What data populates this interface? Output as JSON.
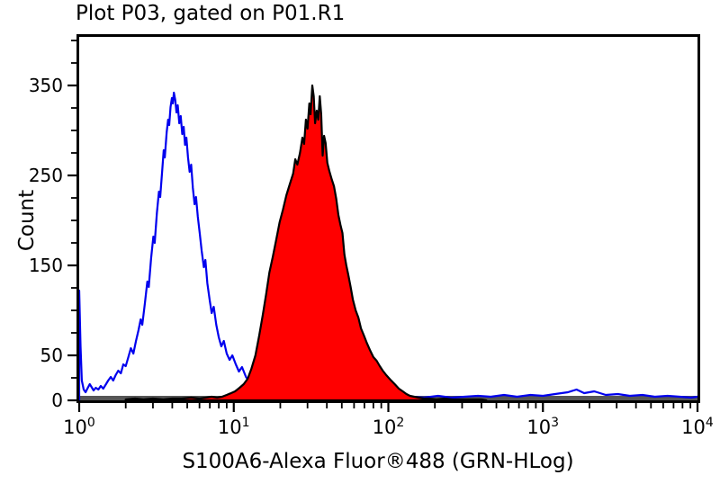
{
  "chart_data": {
    "type": "line",
    "title": "Plot P03, gated on P01.R1",
    "xlabel": "S100A6-Alexa Fluor®488 (GRN-HLog)",
    "ylabel": "Count",
    "x_scale": "log10",
    "xlim": [
      1,
      10000
    ],
    "ylim": [
      0,
      404
    ],
    "grid": false,
    "legend": false,
    "x_tick_base": "10",
    "x_tick_exponents": [
      0,
      1,
      2,
      3,
      4
    ],
    "y_ticks_labeled": [
      0,
      50,
      150,
      250,
      350
    ],
    "y_tick_minor_step": 25,
    "frame_color": "#000000",
    "baseline_band_color": "#565656",
    "series": [
      {
        "name": "blue-open-histogram",
        "stroke": "#0000ee",
        "fill": "none",
        "points": [
          [
            1.0,
            0
          ],
          [
            1.0,
            122
          ],
          [
            1.02,
            60
          ],
          [
            1.04,
            22
          ],
          [
            1.07,
            12
          ],
          [
            1.1,
            9
          ],
          [
            1.13,
            13
          ],
          [
            1.17,
            18
          ],
          [
            1.2,
            15
          ],
          [
            1.24,
            11
          ],
          [
            1.28,
            14
          ],
          [
            1.33,
            12
          ],
          [
            1.38,
            16
          ],
          [
            1.43,
            13
          ],
          [
            1.48,
            17
          ],
          [
            1.54,
            22
          ],
          [
            1.6,
            26
          ],
          [
            1.66,
            22
          ],
          [
            1.72,
            28
          ],
          [
            1.79,
            33
          ],
          [
            1.86,
            30
          ],
          [
            1.93,
            40
          ],
          [
            2.0,
            38
          ],
          [
            2.08,
            48
          ],
          [
            2.16,
            58
          ],
          [
            2.24,
            52
          ],
          [
            2.33,
            66
          ],
          [
            2.42,
            78
          ],
          [
            2.5,
            90
          ],
          [
            2.56,
            84
          ],
          [
            2.66,
            108
          ],
          [
            2.76,
            132
          ],
          [
            2.82,
            126
          ],
          [
            2.92,
            158
          ],
          [
            3.02,
            182
          ],
          [
            3.08,
            175
          ],
          [
            3.18,
            208
          ],
          [
            3.28,
            232
          ],
          [
            3.34,
            226
          ],
          [
            3.44,
            255
          ],
          [
            3.52,
            278
          ],
          [
            3.58,
            270
          ],
          [
            3.68,
            298
          ],
          [
            3.76,
            312
          ],
          [
            3.82,
            306
          ],
          [
            3.9,
            326
          ],
          [
            3.98,
            336
          ],
          [
            4.04,
            330
          ],
          [
            4.1,
            342
          ],
          [
            4.18,
            334
          ],
          [
            4.26,
            320
          ],
          [
            4.34,
            328
          ],
          [
            4.44,
            308
          ],
          [
            4.54,
            316
          ],
          [
            4.64,
            296
          ],
          [
            4.74,
            304
          ],
          [
            4.84,
            284
          ],
          [
            4.94,
            292
          ],
          [
            5.06,
            270
          ],
          [
            5.18,
            254
          ],
          [
            5.3,
            262
          ],
          [
            5.44,
            236
          ],
          [
            5.58,
            218
          ],
          [
            5.7,
            226
          ],
          [
            5.85,
            204
          ],
          [
            6.02,
            186
          ],
          [
            6.2,
            166
          ],
          [
            6.4,
            148
          ],
          [
            6.55,
            156
          ],
          [
            6.75,
            130
          ],
          [
            6.98,
            112
          ],
          [
            7.2,
            97
          ],
          [
            7.42,
            104
          ],
          [
            7.7,
            84
          ],
          [
            8.0,
            70
          ],
          [
            8.3,
            60
          ],
          [
            8.62,
            66
          ],
          [
            9.0,
            52
          ],
          [
            9.4,
            45
          ],
          [
            9.8,
            50
          ],
          [
            10.3,
            40
          ],
          [
            10.8,
            32
          ],
          [
            11.3,
            37
          ],
          [
            12.0,
            26
          ],
          [
            12.7,
            20
          ],
          [
            13.4,
            24
          ],
          [
            14.2,
            13
          ],
          [
            15.2,
            8
          ],
          [
            16.5,
            6
          ],
          [
            18.0,
            4
          ],
          [
            20,
            5
          ],
          [
            23,
            3
          ],
          [
            27,
            4
          ],
          [
            32,
            2
          ],
          [
            38,
            3
          ],
          [
            45,
            2
          ],
          [
            54,
            3
          ],
          [
            65,
            2
          ],
          [
            78,
            3
          ],
          [
            95,
            4
          ],
          [
            115,
            3
          ],
          [
            140,
            4
          ],
          [
            170,
            3
          ],
          [
            210,
            5
          ],
          [
            255,
            3
          ],
          [
            310,
            4
          ],
          [
            380,
            5
          ],
          [
            460,
            4
          ],
          [
            560,
            6
          ],
          [
            680,
            4
          ],
          [
            830,
            6
          ],
          [
            1000,
            5
          ],
          [
            1200,
            7
          ],
          [
            1450,
            9
          ],
          [
            1650,
            12
          ],
          [
            1850,
            8
          ],
          [
            2150,
            10
          ],
          [
            2550,
            6
          ],
          [
            3050,
            7
          ],
          [
            3650,
            5
          ],
          [
            4400,
            6
          ],
          [
            5300,
            4
          ],
          [
            6400,
            5
          ],
          [
            7700,
            4
          ],
          [
            9100,
            3
          ],
          [
            10000,
            4
          ]
        ]
      },
      {
        "name": "red-filled-histogram",
        "stroke": "#000000",
        "fill": "#ff0000",
        "points": [
          [
            2.0,
            1
          ],
          [
            2.3,
            2
          ],
          [
            2.6,
            1
          ],
          [
            3.0,
            2
          ],
          [
            3.5,
            1
          ],
          [
            4.0,
            2
          ],
          [
            4.6,
            2
          ],
          [
            5.3,
            3
          ],
          [
            6.0,
            2
          ],
          [
            6.6,
            3
          ],
          [
            7.2,
            4
          ],
          [
            7.8,
            3
          ],
          [
            8.4,
            4
          ],
          [
            9.0,
            6
          ],
          [
            9.6,
            8
          ],
          [
            10.2,
            10
          ],
          [
            10.9,
            14
          ],
          [
            11.6,
            18
          ],
          [
            12.3,
            24
          ],
          [
            13.0,
            35
          ],
          [
            13.8,
            50
          ],
          [
            14.6,
            72
          ],
          [
            15.4,
            95
          ],
          [
            16.2,
            118
          ],
          [
            17.0,
            142
          ],
          [
            17.9,
            160
          ],
          [
            18.8,
            178
          ],
          [
            19.8,
            198
          ],
          [
            20.8,
            212
          ],
          [
            21.9,
            228
          ],
          [
            23.0,
            240
          ],
          [
            24.2,
            252
          ],
          [
            25.0,
            268
          ],
          [
            25.8,
            262
          ],
          [
            26.8,
            275
          ],
          [
            27.8,
            292
          ],
          [
            28.5,
            285
          ],
          [
            29.3,
            312
          ],
          [
            30.0,
            302
          ],
          [
            30.8,
            330
          ],
          [
            31.4,
            318
          ],
          [
            32.2,
            350
          ],
          [
            32.9,
            338
          ],
          [
            33.6,
            308
          ],
          [
            34.4,
            322
          ],
          [
            35.2,
            312
          ],
          [
            36.0,
            338
          ],
          [
            36.8,
            318
          ],
          [
            37.6,
            272
          ],
          [
            38.4,
            294
          ],
          [
            39.3,
            286
          ],
          [
            40.3,
            264
          ],
          [
            41.5,
            255
          ],
          [
            43.0,
            246
          ],
          [
            44.5,
            238
          ],
          [
            46.0,
            224
          ],
          [
            47.5,
            206
          ],
          [
            49.0,
            195
          ],
          [
            50.5,
            186
          ],
          [
            52.0,
            162
          ],
          [
            53.5,
            150
          ],
          [
            55.0,
            140
          ],
          [
            57.0,
            126
          ],
          [
            59.0,
            112
          ],
          [
            61.5,
            100
          ],
          [
            64.0,
            92
          ],
          [
            66.5,
            80
          ],
          [
            69.5,
            72
          ],
          [
            72.5,
            64
          ],
          [
            76.0,
            56
          ],
          [
            80.0,
            48
          ],
          [
            84.0,
            44
          ],
          [
            88.0,
            38
          ],
          [
            92.0,
            33
          ],
          [
            97.0,
            28
          ],
          [
            103,
            23
          ],
          [
            110,
            18
          ],
          [
            117,
            13
          ],
          [
            124,
            10
          ],
          [
            131,
            7
          ],
          [
            138,
            5
          ],
          [
            147,
            4
          ],
          [
            157,
            3
          ],
          [
            170,
            2
          ],
          [
            185,
            2
          ],
          [
            205,
            1
          ],
          [
            230,
            2
          ],
          [
            260,
            1
          ],
          [
            295,
            1
          ],
          [
            340,
            1
          ],
          [
            400,
            1
          ],
          [
            430,
            0
          ]
        ]
      }
    ]
  }
}
